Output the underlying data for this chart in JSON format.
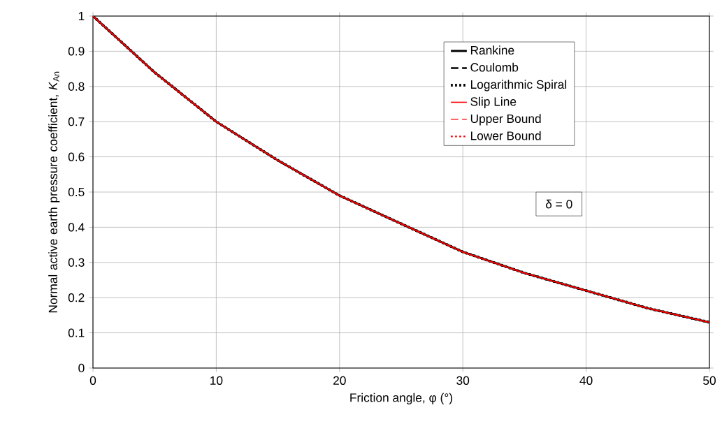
{
  "chart_data": {
    "type": "line",
    "xlabel": "Friction angle, φ (°)",
    "ylabel": "Normal active earth pressure coefficient, *K*$_{An}$",
    "x": [
      0,
      5,
      10,
      15,
      20,
      25,
      30,
      35,
      40,
      45,
      50
    ],
    "series": [
      {
        "name": "Rankine",
        "color": "#000000",
        "line_style": "solid",
        "values": [
          1.0,
          0.84,
          0.7,
          0.59,
          0.49,
          0.41,
          0.33,
          0.27,
          0.22,
          0.17,
          0.13
        ]
      },
      {
        "name": "Coulomb",
        "color": "#000000",
        "line_style": "dashed",
        "values": [
          1.0,
          0.84,
          0.7,
          0.59,
          0.49,
          0.41,
          0.33,
          0.27,
          0.22,
          0.17,
          0.13
        ]
      },
      {
        "name": "Logarithmic Spiral",
        "color": "#000000",
        "line_style": "dotted",
        "values": [
          1.0,
          0.84,
          0.7,
          0.59,
          0.49,
          0.41,
          0.33,
          0.27,
          0.22,
          0.17,
          0.13
        ]
      },
      {
        "name": "Slip Line",
        "color": "#ff0000",
        "line_style": "solid",
        "values": [
          1.0,
          0.84,
          0.7,
          0.59,
          0.49,
          0.41,
          0.33,
          0.27,
          0.22,
          0.17,
          0.13
        ]
      },
      {
        "name": "Upper Bound",
        "color": "#ff0000",
        "line_style": "dashed",
        "values": [
          1.0,
          0.84,
          0.7,
          0.59,
          0.49,
          0.41,
          0.33,
          0.27,
          0.22,
          0.17,
          0.13
        ]
      },
      {
        "name": "Lower Bound",
        "color": "#ff0000",
        "line_style": "dotted",
        "values": [
          1.0,
          0.84,
          0.7,
          0.59,
          0.49,
          0.41,
          0.33,
          0.27,
          0.22,
          0.17,
          0.13
        ]
      }
    ],
    "xlim": [
      0,
      50
    ],
    "ylim": [
      0,
      1
    ],
    "xticks": [
      0,
      10,
      20,
      30,
      40,
      50
    ],
    "yticks": [
      0,
      0.1,
      0.2,
      0.3,
      0.4,
      0.5,
      0.6,
      0.7,
      0.8,
      0.9,
      1
    ],
    "grid": true,
    "legend": "top right",
    "marker": "none",
    "annotations": [
      "δ = 0"
    ]
  }
}
